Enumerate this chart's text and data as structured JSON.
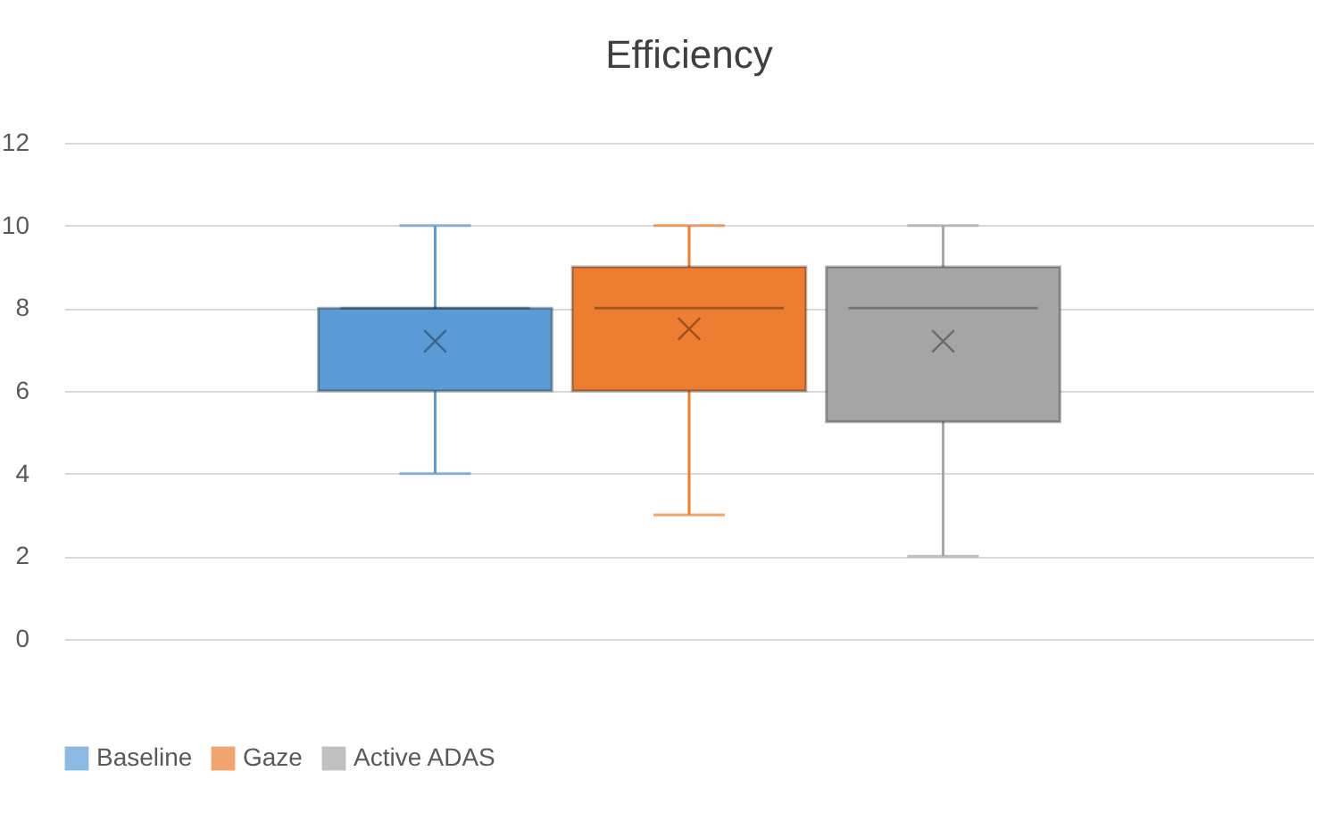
{
  "chart_data": {
    "type": "box",
    "title": "Efficiency",
    "categories": [
      null
    ],
    "series": [
      {
        "name": "Baseline",
        "color": "#5b9bd5",
        "boxes": [
          {
            "low": 4,
            "q1": 6,
            "median": 8,
            "q3": 8,
            "high": 10,
            "mean": 7.2
          }
        ]
      },
      {
        "name": "Gaze",
        "color": "#ed7d31",
        "boxes": [
          {
            "low": 3,
            "q1": 6,
            "median": 8,
            "q3": 9,
            "high": 10,
            "mean": 7.5
          }
        ]
      },
      {
        "name": "Active ADAS",
        "color": "#a5a5a5",
        "boxes": [
          {
            "low": 2,
            "q1": 5.25,
            "median": 8,
            "q3": 9,
            "high": 10,
            "mean": 7.2
          }
        ]
      }
    ],
    "ylim": [
      0,
      12
    ],
    "yticks": [
      0,
      2,
      4,
      6,
      8,
      10,
      12
    ],
    "grid": "y",
    "legend": "bottom",
    "tick_labels": "y",
    "marker": "cross"
  }
}
